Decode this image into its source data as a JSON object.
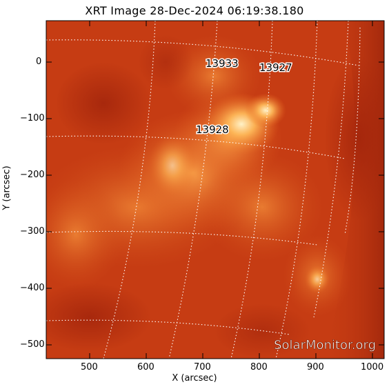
{
  "title": "XRT Image 28-Dec-2024 06:19:38.180",
  "axes": {
    "xlabel": "X (arcsec)",
    "ylabel": "Y (arcsec)",
    "xticks": [
      "500",
      "600",
      "700",
      "800",
      "900",
      "1000"
    ],
    "yticks": [
      "0",
      "−100",
      "−200",
      "−300",
      "−400",
      "−500"
    ]
  },
  "regions": [
    {
      "id": "13933"
    },
    {
      "id": "13927"
    },
    {
      "id": "13928"
    }
  ],
  "watermark": "SolarMonitor.org",
  "colors": {
    "background": "#c73a12",
    "bright": "#ffd9a0",
    "grid": "#ffffff"
  }
}
